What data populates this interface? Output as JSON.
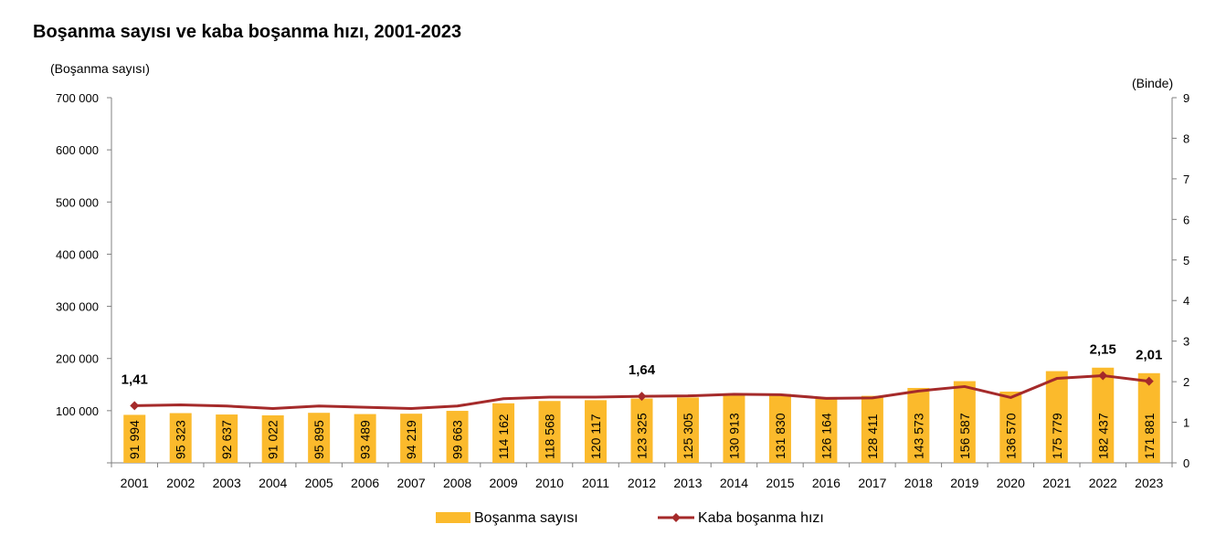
{
  "chart_data": {
    "type": "bar",
    "title": "Boşanma sayısı ve kaba boşanma hızı, 2001-2023",
    "left_axis_unit": "(Boşanma sayısı)",
    "right_axis_unit": "(Binde)",
    "categories": [
      "2001",
      "2002",
      "2003",
      "2004",
      "2005",
      "2006",
      "2007",
      "2008",
      "2009",
      "2010",
      "2011",
      "2012",
      "2013",
      "2014",
      "2015",
      "2016",
      "2017",
      "2018",
      "2019",
      "2020",
      "2021",
      "2022",
      "2023"
    ],
    "left_ticks": [
      "0",
      "100 000",
      "200 000",
      "300 000",
      "400 000",
      "500 000",
      "600 000",
      "700 000"
    ],
    "right_ticks": [
      "0",
      "1",
      "2",
      "3",
      "4",
      "5",
      "6",
      "7",
      "8",
      "9"
    ],
    "ylim_left": [
      0,
      700000
    ],
    "ylim_right": [
      0,
      9
    ],
    "grid": false,
    "legend_position": "bottom",
    "series": [
      {
        "name": "Boşanma sayısı",
        "type": "bar",
        "axis": "left",
        "color": "#FBBA2C",
        "values": [
          91994,
          95323,
          92637,
          91022,
          95895,
          93489,
          94219,
          99663,
          114162,
          118568,
          120117,
          123325,
          125305,
          130913,
          131830,
          126164,
          128411,
          143573,
          156587,
          136570,
          175779,
          182437,
          171881
        ],
        "labels": [
          "91 994",
          "95 323",
          "92 637",
          "91 022",
          "95 895",
          "93 489",
          "94 219",
          "99 663",
          "114 162",
          "118 568",
          "120 117",
          "123 325",
          "125 305",
          "130 913",
          "131 830",
          "126 164",
          "128 411",
          "143 573",
          "156 587",
          "136 570",
          "175 779",
          "182 437",
          "171 881"
        ]
      },
      {
        "name": "Kaba boşanma hızı",
        "type": "line",
        "axis": "right",
        "color": "#A52A2A",
        "values": [
          1.41,
          1.43,
          1.4,
          1.34,
          1.4,
          1.37,
          1.34,
          1.4,
          1.58,
          1.62,
          1.62,
          1.64,
          1.65,
          1.69,
          1.68,
          1.59,
          1.6,
          1.77,
          1.88,
          1.61,
          2.08,
          2.15,
          2.01
        ],
        "labeled_points": [
          {
            "index": 0,
            "label": "1,41"
          },
          {
            "index": 11,
            "label": "1,64"
          },
          {
            "index": 21,
            "label": "2,15"
          },
          {
            "index": 22,
            "label": "2,01"
          }
        ]
      }
    ]
  }
}
